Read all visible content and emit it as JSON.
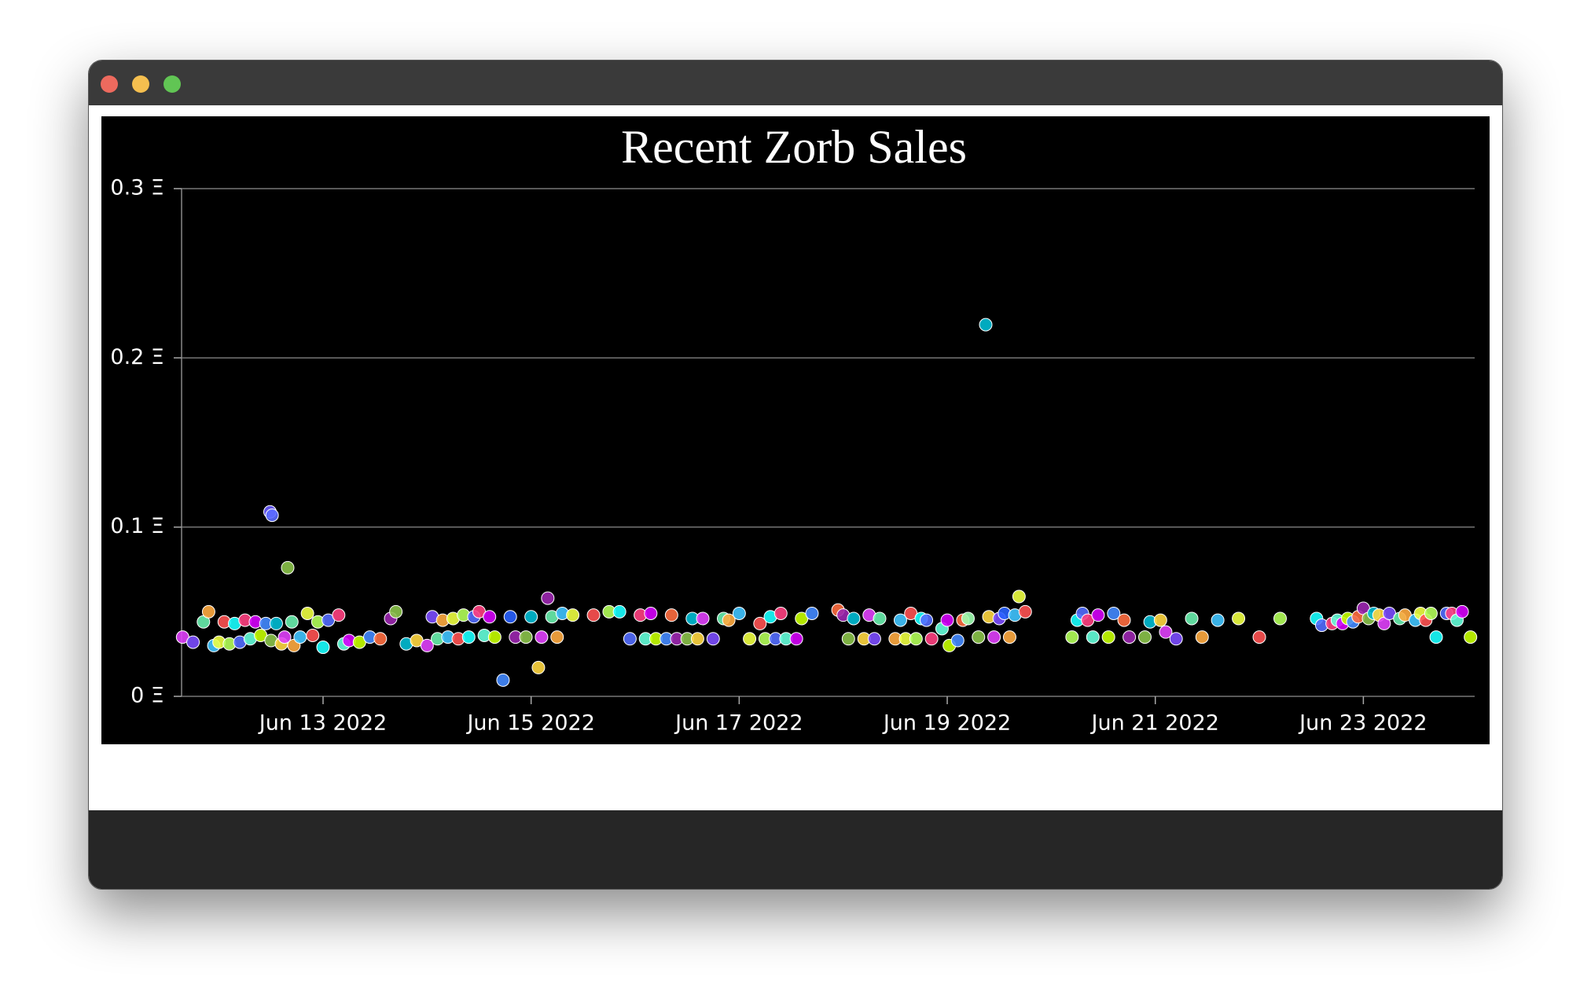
{
  "chart_data": {
    "type": "scatter",
    "title": "Recent Zorb Sales",
    "x": [
      11.65,
      11.75,
      11.85,
      11.9,
      11.95,
      12.0,
      12.05,
      12.1,
      12.15,
      12.2,
      12.25,
      12.3,
      12.35,
      12.4,
      12.45,
      12.49,
      12.51,
      12.5,
      12.55,
      12.6,
      12.63,
      12.66,
      12.7,
      12.72,
      12.78,
      12.85,
      12.9,
      12.95,
      13.0,
      13.05,
      13.15,
      13.2,
      13.25,
      13.35,
      13.45,
      13.55,
      13.65,
      13.7,
      13.8,
      13.9,
      14.0,
      14.05,
      14.1,
      14.15,
      14.2,
      14.25,
      14.3,
      14.35,
      14.4,
      14.45,
      14.5,
      14.55,
      14.6,
      14.65,
      14.73,
      14.8,
      14.85,
      14.95,
      15.0,
      15.07,
      15.1,
      15.16,
      15.2,
      15.25,
      15.3,
      15.4,
      15.6,
      15.75,
      15.85,
      15.95,
      16.05,
      16.1,
      16.15,
      16.2,
      16.3,
      16.35,
      16.4,
      16.5,
      16.55,
      16.6,
      16.65,
      16.75,
      16.85,
      16.9,
      17.0,
      17.1,
      17.2,
      17.25,
      17.3,
      17.35,
      17.4,
      17.45,
      17.55,
      17.6,
      17.7,
      17.95,
      18.0,
      18.05,
      18.1,
      18.2,
      18.25,
      18.3,
      18.35,
      18.5,
      18.55,
      18.6,
      18.65,
      18.7,
      18.75,
      18.8,
      18.85,
      18.95,
      19.0,
      19.02,
      19.1,
      19.15,
      19.2,
      19.3,
      19.37,
      19.4,
      19.45,
      19.5,
      19.55,
      19.6,
      19.65,
      19.69,
      19.75,
      20.2,
      20.25,
      20.3,
      20.35,
      20.4,
      20.45,
      20.55,
      20.6,
      20.7,
      20.75,
      20.9,
      20.95,
      21.05,
      21.1,
      21.2,
      21.35,
      21.45,
      21.6,
      21.8,
      22.0,
      22.2,
      22.55,
      22.6,
      22.7,
      22.75,
      22.8,
      22.85,
      22.9,
      22.95,
      23.0,
      23.05,
      23.1,
      23.15,
      23.2,
      23.25,
      23.35,
      23.4,
      23.5,
      23.55,
      23.6,
      23.65,
      23.7,
      23.8,
      23.85,
      23.9,
      23.95,
      24.03
    ],
    "values": [
      0.035,
      0.032,
      0.044,
      0.05,
      0.03,
      0.032,
      0.044,
      0.031,
      0.043,
      0.032,
      0.045,
      0.034,
      0.044,
      0.036,
      0.043,
      0.109,
      0.107,
      0.033,
      0.043,
      0.031,
      0.035,
      0.076,
      0.044,
      0.03,
      0.035,
      0.049,
      0.036,
      0.044,
      0.029,
      0.045,
      0.048,
      0.031,
      0.033,
      0.032,
      0.035,
      0.034,
      0.046,
      0.05,
      0.031,
      0.033,
      0.03,
      0.047,
      0.034,
      0.045,
      0.035,
      0.046,
      0.034,
      0.048,
      0.035,
      0.047,
      0.05,
      0.036,
      0.047,
      0.035,
      0.0096,
      0.047,
      0.035,
      0.035,
      0.047,
      0.017,
      0.035,
      0.058,
      0.047,
      0.035,
      0.049,
      0.048,
      0.048,
      0.05,
      0.05,
      0.034,
      0.048,
      0.034,
      0.049,
      0.034,
      0.034,
      0.048,
      0.034,
      0.034,
      0.046,
      0.034,
      0.046,
      0.034,
      0.046,
      0.045,
      0.049,
      0.034,
      0.043,
      0.034,
      0.047,
      0.034,
      0.049,
      0.034,
      0.034,
      0.046,
      0.049,
      0.051,
      0.048,
      0.034,
      0.046,
      0.034,
      0.048,
      0.034,
      0.046,
      0.034,
      0.045,
      0.034,
      0.049,
      0.034,
      0.046,
      0.045,
      0.034,
      0.04,
      0.045,
      0.03,
      0.033,
      0.045,
      0.046,
      0.035,
      0.2196,
      0.047,
      0.035,
      0.046,
      0.049,
      0.035,
      0.048,
      0.059,
      0.05,
      0.035,
      0.045,
      0.049,
      0.045,
      0.035,
      0.048,
      0.035,
      0.049,
      0.045,
      0.035,
      0.035,
      0.044,
      0.045,
      0.038,
      0.034,
      0.046,
      0.035,
      0.045,
      0.046,
      0.035,
      0.046,
      0.046,
      0.042,
      0.043,
      0.045,
      0.043,
      0.046,
      0.044,
      0.047,
      0.052,
      0.046,
      0.049,
      0.048,
      0.043,
      0.049,
      0.046,
      0.048,
      0.045,
      0.049,
      0.045,
      0.049,
      0.035,
      0.049,
      0.049,
      0.045,
      0.05,
      0.035
    ],
    "colors": [
      "#e040fb",
      "#7c4dff",
      "#69f0ae",
      "#ffab40",
      "#40c4ff",
      "#eeff41",
      "#ff5252",
      "#b2ff59",
      "#18ffff",
      "#536dfe",
      "#ff4081",
      "#64ffda",
      "#d500f9",
      "#c6ff00",
      "#448aff",
      "#6a5cff",
      "#5b6cff",
      "#8bc34a",
      "#00bcd4",
      "#ffd740",
      "#e040fb",
      "#8bc34a",
      "#69f0ae",
      "#ffab40",
      "#40c4ff",
      "#eeff41",
      "#ff5252",
      "#b2ff59",
      "#18ffff",
      "#536dfe",
      "#ff4081",
      "#64ffda",
      "#d500f9",
      "#c6ff00",
      "#448aff",
      "#ff6e40",
      "#9c27b0",
      "#8bc34a",
      "#00bcd4",
      "#ffd740",
      "#e040fb",
      "#7c4dff",
      "#69f0ae",
      "#ffab40",
      "#40c4ff",
      "#eeff41",
      "#ff5252",
      "#b2ff59",
      "#18ffff",
      "#536dfe",
      "#ff4081",
      "#64ffda",
      "#d500f9",
      "#c6ff00",
      "#448aff",
      "#2962ff",
      "#9c27b0",
      "#8bc34a",
      "#00bcd4",
      "#ffd740",
      "#e040fb",
      "#9c27b0",
      "#69f0ae",
      "#ffab40",
      "#40c4ff",
      "#eeff41",
      "#ff5252",
      "#b2ff59",
      "#18ffff",
      "#536dfe",
      "#ff4081",
      "#64ffda",
      "#d500f9",
      "#c6ff00",
      "#448aff",
      "#ff6e40",
      "#9c27b0",
      "#8bc34a",
      "#00bcd4",
      "#ffd740",
      "#e040fb",
      "#7c4dff",
      "#69f0ae",
      "#ffab40",
      "#40c4ff",
      "#eeff41",
      "#ff5252",
      "#b2ff59",
      "#18ffff",
      "#536dfe",
      "#ff4081",
      "#64ffda",
      "#d500f9",
      "#c6ff00",
      "#448aff",
      "#ff6e40",
      "#9c27b0",
      "#8bc34a",
      "#00bcd4",
      "#ffd740",
      "#e040fb",
      "#7c4dff",
      "#69f0ae",
      "#ffab40",
      "#40c4ff",
      "#eeff41",
      "#ff5252",
      "#b2ff59",
      "#18ffff",
      "#536dfe",
      "#ff4081",
      "#64ffda",
      "#d500f9",
      "#c6ff00",
      "#448aff",
      "#ff6e40",
      "#9fffb0",
      "#8bc34a",
      "#00bcd4",
      "#ffd740",
      "#e040fb",
      "#7c4dff",
      "#2962ff",
      "#ffab40",
      "#40c4ff",
      "#eeff41",
      "#ff5252",
      "#b2ff59",
      "#18ffff",
      "#536dfe",
      "#ff4081",
      "#64ffda",
      "#d500f9",
      "#c6ff00",
      "#448aff",
      "#ff6e40",
      "#9c27b0",
      "#8bc34a",
      "#00bcd4",
      "#ffd740",
      "#e040fb",
      "#7c4dff",
      "#69f0ae",
      "#ffab40",
      "#40c4ff",
      "#eeff41",
      "#ff5252",
      "#b2ff59",
      "#18ffff",
      "#536dfe",
      "#ff4081",
      "#64ffda",
      "#d500f9",
      "#c6ff00",
      "#448aff",
      "#ff6e40",
      "#9c27b0",
      "#8bc34a",
      "#00bcd4",
      "#ffd740",
      "#e040fb",
      "#7c4dff",
      "#69f0ae",
      "#ffab40",
      "#40c4ff",
      "#eeff41",
      "#ff5252",
      "#b2ff59",
      "#18ffff",
      "#536dfe",
      "#ff4081",
      "#64ffda",
      "#d500f9",
      "#c6ff00"
    ],
    "xlim": [
      11.64,
      24.07
    ],
    "xticks": [
      {
        "value": 13,
        "label": "Jun 13 2022"
      },
      {
        "value": 15,
        "label": "Jun 15 2022"
      },
      {
        "value": 17,
        "label": "Jun 17 2022"
      },
      {
        "value": 19,
        "label": "Jun 19 2022"
      },
      {
        "value": 21,
        "label": "Jun 21 2022"
      },
      {
        "value": 23,
        "label": "Jun 23 2022"
      }
    ],
    "ylim": [
      0,
      0.3
    ],
    "yticks": [
      {
        "value": 0,
        "label": "0 Ξ"
      },
      {
        "value": 0.1,
        "label": "0.1 Ξ"
      },
      {
        "value": 0.2,
        "label": "0.2 Ξ"
      },
      {
        "value": 0.3,
        "label": "0.3 Ξ"
      }
    ],
    "grid": true
  }
}
